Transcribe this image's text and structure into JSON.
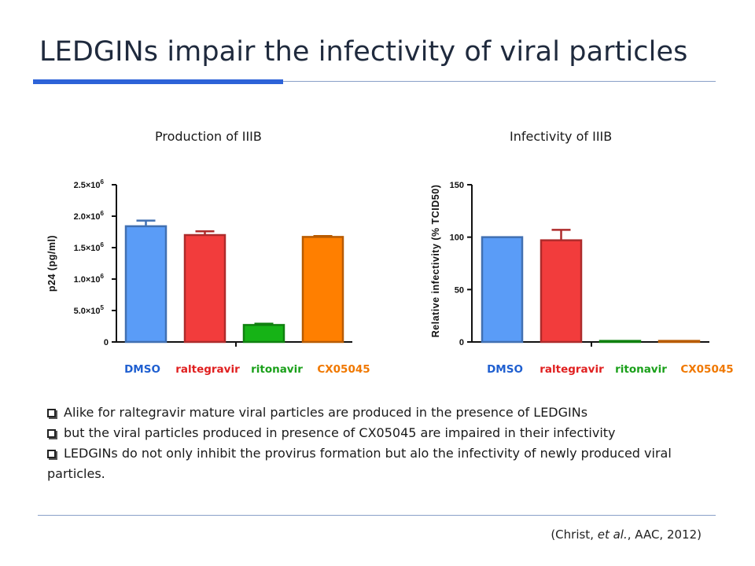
{
  "slide": {
    "title": "LEDGINs impair the infectivity of viral particles",
    "bullets": [
      "Alike for raltegravir mature viral particles are produced in the presence of LEDGINs",
      "but the viral particles produced in presence of CX05045 are impaired in their infectivity",
      "LEDGINs do not only inhibit the provirus formation but alo the infectivity of newly produced viral particles."
    ],
    "citation": {
      "before": "(Christ, ",
      "emph": "et al.",
      "after": ", AAC, 2012)"
    }
  },
  "colors": {
    "DMSO": "#5a9cf7",
    "raltegravir": "#f23c3c",
    "ritonavir": "#16b316",
    "CX05045": "#ff7f00",
    "DMSO_label": "#1f5fd0",
    "raltegravir_label": "#e02020",
    "ritonavir_label": "#1aa01a",
    "CX05045_label": "#f07800"
  },
  "chart_data": [
    {
      "type": "bar",
      "title": "Production of IIIB",
      "ylabel": "p24 (pg/ml)",
      "categories": [
        "DMSO",
        "raltegravir",
        "ritonavir",
        "CX05045"
      ],
      "values": [
        1840000,
        1700000,
        270000,
        1670000
      ],
      "errors": [
        90000,
        60000,
        20000,
        15000
      ],
      "ylim": [
        0,
        2500000
      ],
      "yticks": [
        {
          "value": 0,
          "mant": "0",
          "exp": ""
        },
        {
          "value": 500000,
          "mant": "5.0×10",
          "exp": "5"
        },
        {
          "value": 1000000,
          "mant": "1.0×10",
          "exp": "6"
        },
        {
          "value": 1500000,
          "mant": "1.5×10",
          "exp": "6"
        },
        {
          "value": 2000000,
          "mant": "2.0×10",
          "exp": "6"
        },
        {
          "value": 2500000,
          "mant": "2.5×10",
          "exp": "6"
        }
      ],
      "grid": false
    },
    {
      "type": "bar",
      "title": "Infectivity of IIIB",
      "ylabel": "Relative infectivity (% TCID50)",
      "categories": [
        "DMSO",
        "raltegravir",
        "ritonavir",
        "CX05045"
      ],
      "values": [
        100,
        97,
        1,
        1
      ],
      "errors": [
        0,
        10,
        0,
        0
      ],
      "ylim": [
        0,
        150
      ],
      "yticks": [
        {
          "value": 0,
          "mant": "0",
          "exp": ""
        },
        {
          "value": 50,
          "mant": "50",
          "exp": ""
        },
        {
          "value": 100,
          "mant": "100",
          "exp": ""
        },
        {
          "value": 150,
          "mant": "150",
          "exp": ""
        }
      ],
      "grid": false
    }
  ]
}
